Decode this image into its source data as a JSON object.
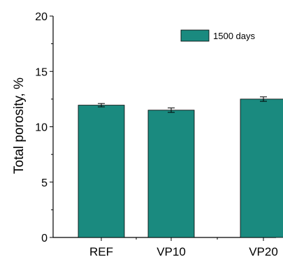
{
  "chart_data": {
    "type": "bar",
    "title": "",
    "xlabel": "",
    "ylabel": "Total porosity, %",
    "categories": [
      "REF",
      "VP10",
      "VP20"
    ],
    "series": [
      {
        "name": "1500 days",
        "values": [
          11.95,
          11.5,
          12.5
        ],
        "errors": [
          0.15,
          0.2,
          0.2
        ]
      }
    ],
    "ylim": [
      0,
      20
    ],
    "yticks": [
      0,
      5,
      10,
      15,
      20
    ],
    "legend_position": "top-right",
    "grid": false,
    "colors": {
      "bar": "#1a8a7f",
      "axis": "#000000"
    }
  }
}
